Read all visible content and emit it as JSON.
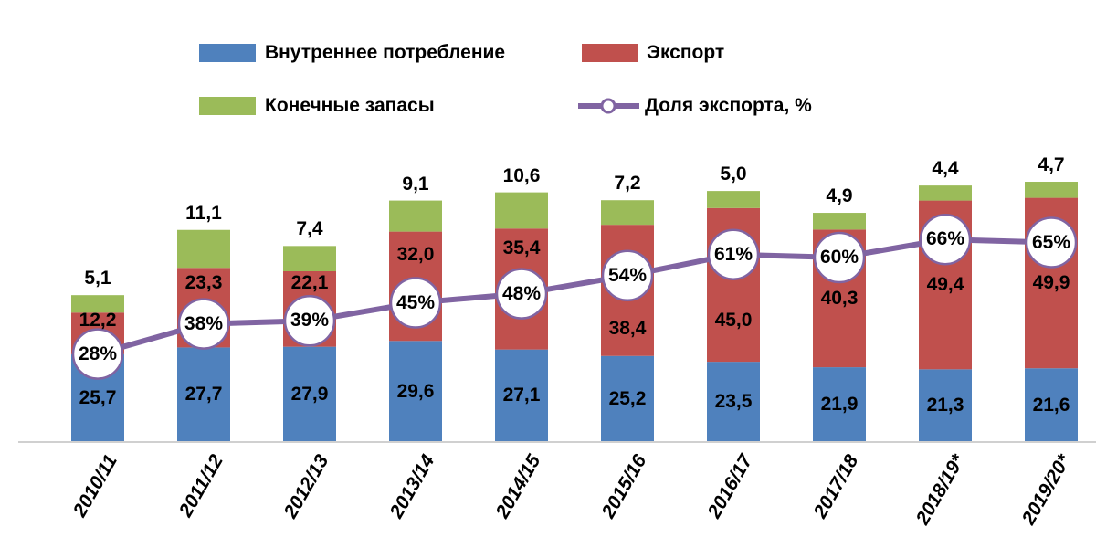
{
  "chart_data": {
    "type": "bar",
    "stacked": true,
    "title": "",
    "categories": [
      "2010/11",
      "2011/12",
      "2012/13",
      "2013/14",
      "2014/15",
      "2015/16",
      "2016/17",
      "2017/18",
      "2018/19*",
      "2019/20*"
    ],
    "series": [
      {
        "name": "Внутреннее потребление",
        "color": "#4f81bd",
        "values": [
          25.7,
          27.7,
          27.9,
          29.6,
          27.1,
          25.2,
          23.5,
          21.9,
          21.3,
          21.6
        ],
        "labels": [
          "25,7",
          "27,7",
          "27,9",
          "29,6",
          "27,1",
          "25,2",
          "23,5",
          "21,9",
          "21,3",
          "21,6"
        ]
      },
      {
        "name": "Экспорт",
        "color": "#c0504d",
        "values": [
          12.2,
          23.3,
          22.1,
          32.0,
          35.4,
          38.4,
          45.0,
          40.3,
          49.4,
          49.9
        ],
        "labels": [
          "12,2",
          "23,3",
          "22,1",
          "32,0",
          "35,4",
          "38,4",
          "45,0",
          "40,3",
          "49,4",
          "49,9"
        ]
      },
      {
        "name": "Конечные запасы",
        "color": "#9bbb59",
        "values": [
          5.1,
          11.1,
          7.4,
          9.1,
          10.6,
          7.2,
          5.0,
          4.9,
          4.4,
          4.7
        ],
        "labels": [
          "5,1",
          "11,1",
          "7,4",
          "9,1",
          "10,6",
          "7,2",
          "5,0",
          "4,9",
          "4,4",
          "4,7"
        ]
      }
    ],
    "line_series": {
      "name": "Доля экспорта, %",
      "color": "#8064a2",
      "values": [
        28,
        38,
        39,
        45,
        48,
        54,
        61,
        60,
        66,
        65
      ],
      "labels": [
        "28%",
        "38%",
        "39%",
        "45%",
        "48%",
        "54%",
        "61%",
        "60%",
        "66%",
        "65%"
      ]
    },
    "legend_position": "top",
    "grid": false
  }
}
